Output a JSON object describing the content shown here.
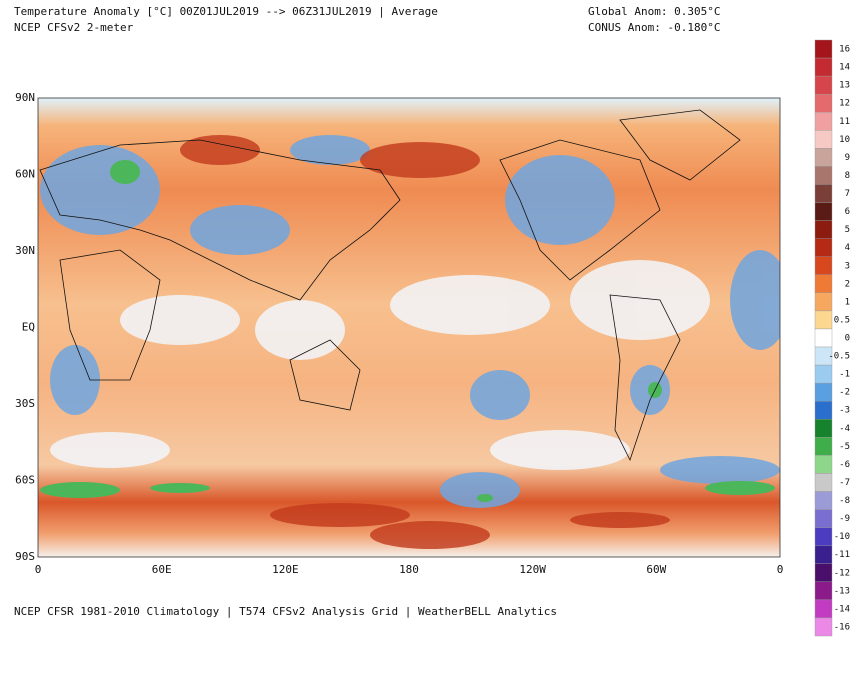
{
  "header": {
    "title_left": "Temperature Anomaly [°C] 00Z01JUL2019 --> 06Z31JUL2019 | Average",
    "subtitle_left": "NCEP CFSv2 2-meter",
    "title_right": "Global Anom: 0.305°C",
    "subtitle_right": "CONUS Anom: -0.180°C"
  },
  "map": {
    "lat_labels": [
      "90N",
      "60N",
      "30N",
      "EQ",
      "30S",
      "60S",
      "90S"
    ],
    "lon_labels": [
      "0",
      "60E",
      "120E",
      "180",
      "120W",
      "60W",
      "0"
    ]
  },
  "footer": "NCEP CFSR 1981-2010 Climatology | T574 CFSv2 Analysis Grid | WeatherBELL Analytics",
  "colorbar": [
    {
      "label": "16",
      "color": "#a3151b"
    },
    {
      "label": "14",
      "color": "#c42a32"
    },
    {
      "label": "13",
      "color": "#d6454b"
    },
    {
      "label": "12",
      "color": "#e46a6c"
    },
    {
      "label": "11",
      "color": "#f0a0a0"
    },
    {
      "label": "10",
      "color": "#f7c9c4"
    },
    {
      "label": "9",
      "color": "#c9a49a"
    },
    {
      "label": "8",
      "color": "#a8766a"
    },
    {
      "label": "7",
      "color": "#7a3f36"
    },
    {
      "label": "6",
      "color": "#5a1b14"
    },
    {
      "label": "5",
      "color": "#8c1c10"
    },
    {
      "label": "4",
      "color": "#b52a14"
    },
    {
      "label": "3",
      "color": "#d8481e"
    },
    {
      "label": "2",
      "color": "#ee7a36"
    },
    {
      "label": "1",
      "color": "#f7a860"
    },
    {
      "label": "0.5",
      "color": "#fbd78f"
    },
    {
      "label": "0",
      "color": "#ffffff"
    },
    {
      "label": "-0.5",
      "color": "#cde6f7"
    },
    {
      "label": "-1",
      "color": "#9bcbef"
    },
    {
      "label": "-2",
      "color": "#5a9fe0"
    },
    {
      "label": "-3",
      "color": "#2b6fcc"
    },
    {
      "label": "-4",
      "color": "#17822e"
    },
    {
      "label": "-5",
      "color": "#3fae4a"
    },
    {
      "label": "-6",
      "color": "#8ed68a"
    },
    {
      "label": "-7",
      "color": "#c9c9c9"
    },
    {
      "label": "-8",
      "color": "#9b9bd8"
    },
    {
      "label": "-9",
      "color": "#7a6fd0"
    },
    {
      "label": "-10",
      "color": "#4b3cc0"
    },
    {
      "label": "-11",
      "color": "#3a1f8e"
    },
    {
      "label": "-12",
      "color": "#4a0f6a"
    },
    {
      "label": "-13",
      "color": "#8b1a8b"
    },
    {
      "label": "-14",
      "color": "#c23cc2"
    },
    {
      "label": "-16",
      "color": "#ec88e6"
    }
  ]
}
